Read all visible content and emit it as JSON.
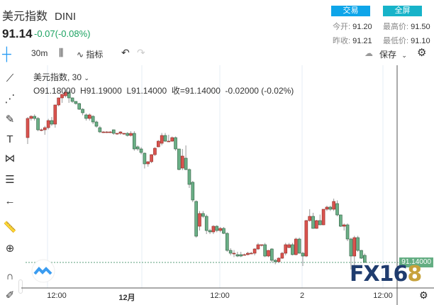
{
  "header": {
    "title": "美元指数",
    "symbol": "DINI",
    "price": "91.14",
    "change": "-0.07(-0.08%)",
    "trade_button": "交易",
    "fullscreen_button": "全屏",
    "stats": [
      {
        "label": "今开:",
        "value": "91.20"
      },
      {
        "label": "最高价:",
        "value": "91.50"
      },
      {
        "label": "昨收:",
        "value": "91.21"
      },
      {
        "label": "最低价:",
        "value": "91.10"
      }
    ]
  },
  "toolbar": {
    "interval": "30m",
    "indicators": "指标",
    "save": "保存"
  },
  "legend": {
    "name": "美元指数, 30",
    "ohlc": "O91.18000  H91.19000  L91.14000  收=91.14000  -0.02000 (-0.02%)"
  },
  "colors": {
    "up": "#d9534f",
    "down": "#6aaf86",
    "trade": "#0ea5e9",
    "fullscreen": "#17b3c9",
    "change": "#1aa260"
  },
  "price_label": "91.14000",
  "watermark": "FX168",
  "chart_data": {
    "type": "candlestick",
    "x_ticks": [
      "12:00",
      "12月",
      "12:00",
      "2",
      "12:00"
    ],
    "last_price": 91.14,
    "candles": [
      [
        91.844,
        91.96,
        91.808,
        91.952
      ],
      [
        91.952,
        91.97,
        91.94,
        91.964
      ],
      [
        91.964,
        91.975,
        91.94,
        91.952
      ],
      [
        91.952,
        91.96,
        91.88,
        91.888
      ],
      [
        91.888,
        91.895,
        91.88,
        91.888
      ],
      [
        91.888,
        91.91,
        91.86,
        91.9
      ],
      [
        91.9,
        91.95,
        91.89,
        91.94
      ],
      [
        91.94,
        91.96,
        91.91,
        91.92
      ],
      [
        91.92,
        92.03,
        91.9,
        92.028
      ],
      [
        92.028,
        92.07,
        92.02,
        92.068
      ],
      [
        92.068,
        92.09,
        92.04,
        92.088
      ],
      [
        92.08,
        92.11,
        92.07,
        92.1
      ],
      [
        92.1,
        92.11,
        92.04,
        92.068
      ],
      [
        92.068,
        92.07,
        92.04,
        92.048
      ],
      [
        92.048,
        92.05,
        92.03,
        92.036
      ],
      [
        92.036,
        92.04,
        92.0,
        92.004
      ],
      [
        92.004,
        92.01,
        91.97,
        91.984
      ],
      [
        91.972,
        91.98,
        91.94,
        91.952
      ],
      [
        91.952,
        91.98,
        91.94,
        91.972
      ],
      [
        91.964,
        91.97,
        91.92,
        91.932
      ],
      [
        91.932,
        91.94,
        91.9,
        91.908
      ],
      [
        91.9,
        91.91,
        91.87,
        91.876
      ],
      [
        91.876,
        91.88,
        91.87,
        91.876
      ],
      [
        91.876,
        91.88,
        91.87,
        91.876
      ],
      [
        91.876,
        91.88,
        91.87,
        91.876
      ],
      [
        91.888,
        91.89,
        91.86,
        91.868
      ],
      [
        91.868,
        91.87,
        91.86,
        91.868
      ],
      [
        91.868,
        91.88,
        91.86,
        91.876
      ],
      [
        91.868,
        91.87,
        91.86,
        91.868
      ],
      [
        91.868,
        91.875,
        91.85,
        91.856
      ],
      [
        91.856,
        91.88,
        91.85,
        91.868
      ],
      [
        91.868,
        91.88,
        91.77,
        91.78
      ],
      [
        91.792,
        91.8,
        91.77,
        91.78
      ],
      [
        91.78,
        91.79,
        91.75,
        91.76
      ],
      [
        91.756,
        91.76,
        91.67,
        91.696
      ],
      [
        91.696,
        91.71,
        91.68,
        91.708
      ],
      [
        91.708,
        91.75,
        91.7,
        91.748
      ],
      [
        91.748,
        91.79,
        91.74,
        91.784
      ],
      [
        91.792,
        91.83,
        91.79,
        91.824
      ],
      [
        91.812,
        91.87,
        91.8,
        91.856
      ],
      [
        91.856,
        91.87,
        91.82,
        91.824
      ],
      [
        91.824,
        91.86,
        91.82,
        91.824
      ],
      [
        91.824,
        91.85,
        91.82,
        91.844
      ],
      [
        91.844,
        91.85,
        91.77,
        91.78
      ],
      [
        91.78,
        91.78,
        91.66,
        91.664
      ],
      [
        91.672,
        91.78,
        91.66,
        91.74
      ],
      [
        91.728,
        91.8,
        91.66,
        91.664
      ],
      [
        91.664,
        91.67,
        91.56,
        91.58
      ],
      [
        91.592,
        91.6,
        91.48,
        91.492
      ],
      [
        91.484,
        91.49,
        91.28,
        91.288
      ],
      [
        91.344,
        91.43,
        91.32,
        91.416
      ],
      [
        91.416,
        91.43,
        91.39,
        91.4
      ],
      [
        91.4,
        91.41,
        91.3,
        91.32
      ],
      [
        91.32,
        91.33,
        91.3,
        91.312
      ],
      [
        91.312,
        91.35,
        91.3,
        91.344
      ],
      [
        91.344,
        91.35,
        91.31,
        91.32
      ],
      [
        91.32,
        91.34,
        91.31,
        91.332
      ],
      [
        91.332,
        91.34,
        91.3,
        91.304
      ],
      [
        91.304,
        91.31,
        91.2,
        91.208
      ],
      [
        91.208,
        91.22,
        91.18,
        91.192
      ],
      [
        91.192,
        91.21,
        91.17,
        91.192
      ],
      [
        91.184,
        91.2,
        91.17,
        91.176
      ],
      [
        91.184,
        91.2,
        91.17,
        91.176
      ],
      [
        91.184,
        91.19,
        91.18,
        91.184
      ],
      [
        91.184,
        91.2,
        91.18,
        91.192
      ],
      [
        91.192,
        91.2,
        91.19,
        91.192
      ],
      [
        91.192,
        91.22,
        91.18,
        91.216
      ],
      [
        91.216,
        91.25,
        91.21,
        91.24
      ],
      [
        91.24,
        91.24,
        91.23,
        91.24
      ],
      [
        91.24,
        91.25,
        91.17,
        91.176
      ],
      [
        91.176,
        91.21,
        91.17,
        91.208
      ],
      [
        91.216,
        91.22,
        91.14,
        91.152
      ],
      [
        91.152,
        91.16,
        91.13,
        91.144
      ],
      [
        91.144,
        91.17,
        91.14,
        91.164
      ],
      [
        91.164,
        91.2,
        91.16,
        91.192
      ],
      [
        91.192,
        91.25,
        91.18,
        91.24
      ],
      [
        91.224,
        91.25,
        91.22,
        91.24
      ],
      [
        91.24,
        91.25,
        91.18,
        91.184
      ],
      [
        91.184,
        91.28,
        91.18,
        91.272
      ],
      [
        91.272,
        91.28,
        91.19,
        91.192
      ],
      [
        91.192,
        91.2,
        91.12,
        91.176
      ],
      [
        91.176,
        91.38,
        91.17,
        91.376
      ],
      [
        91.376,
        91.44,
        91.37,
        91.4
      ],
      [
        91.4,
        91.42,
        91.33,
        91.332
      ],
      [
        91.332,
        91.38,
        91.33,
        91.376
      ],
      [
        91.376,
        91.41,
        91.35,
        91.352
      ],
      [
        91.352,
        91.44,
        91.35,
        91.44
      ],
      [
        91.44,
        91.46,
        91.43,
        91.452
      ],
      [
        91.452,
        91.46,
        91.43,
        91.44
      ],
      [
        91.44,
        91.5,
        91.43,
        91.484
      ],
      [
        91.472,
        91.49,
        91.4,
        91.408
      ],
      [
        91.408,
        91.41,
        91.34,
        91.344
      ],
      [
        91.344,
        91.36,
        91.32,
        91.352
      ],
      [
        91.352,
        91.36,
        91.26,
        91.272
      ],
      [
        91.272,
        91.28,
        91.1,
        91.176
      ],
      [
        91.176,
        91.29,
        91.12,
        91.28
      ],
      [
        91.28,
        91.29,
        91.2,
        91.208
      ],
      [
        91.208,
        91.21,
        91.16,
        91.164
      ],
      [
        91.18,
        91.19,
        91.14,
        91.14
      ]
    ]
  }
}
